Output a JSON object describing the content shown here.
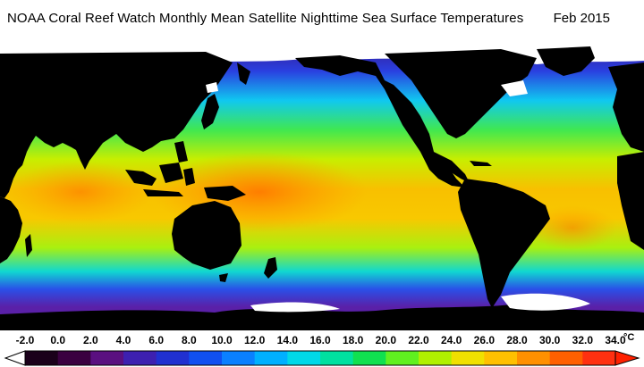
{
  "header": {
    "title": "NOAA Coral Reef Watch Monthly Mean Satellite Nighttime Sea Surface Temperatures",
    "date": "Feb 2015"
  },
  "legend": {
    "unit": "°C",
    "ticks": [
      "-2.0",
      "0.0",
      "2.0",
      "4.0",
      "6.0",
      "8.0",
      "10.0",
      "12.0",
      "14.0",
      "16.0",
      "18.0",
      "20.0",
      "22.0",
      "24.0",
      "26.0",
      "28.0",
      "30.0",
      "32.0",
      "34.0"
    ],
    "colors": [
      "#1a001a",
      "#3a0040",
      "#5a1080",
      "#3d20b0",
      "#2030d0",
      "#1050f0",
      "#0a80ff",
      "#00b0ff",
      "#00d8e8",
      "#00e0a0",
      "#10e050",
      "#60f020",
      "#b0f000",
      "#f0e000",
      "#ffc000",
      "#ff9000",
      "#ff6000",
      "#ff3010"
    ]
  },
  "map": {
    "ocean_colors": {
      "polar": "#4a1ea8",
      "subpolar": "#2a5ef0",
      "temperate": "#18d8e0",
      "subtropic": "#60f020",
      "tropic": "#f0c000",
      "warm_pool": "#ff8a00"
    },
    "land_color": "#000000",
    "ice_color": "#ffffff"
  }
}
